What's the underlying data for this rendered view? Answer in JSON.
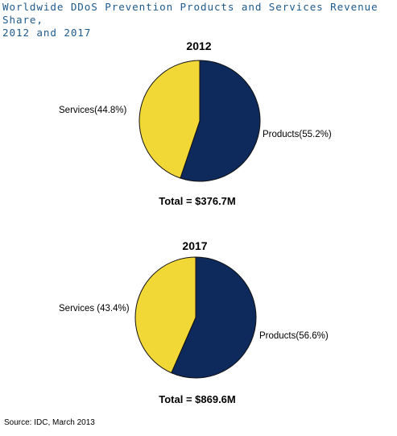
{
  "title_lines": [
    "Worldwide DDoS Prevention Products and Services Revenue Share,",
    "2012 and 2017"
  ],
  "chart_data": [
    {
      "type": "pie",
      "title": "2012",
      "slices": [
        {
          "label": "Products",
          "value": 55.2,
          "display": "Products(55.2%)",
          "color": "#0e2a5c"
        },
        {
          "label": "Services",
          "value": 44.8,
          "display": "Services(44.8%)",
          "color": "#f2d837"
        }
      ],
      "total_text": "Total = $376.7M"
    },
    {
      "type": "pie",
      "title": "2017",
      "slices": [
        {
          "label": "Products",
          "value": 56.6,
          "display": "Products(56.6%)",
          "color": "#0e2a5c"
        },
        {
          "label": "Services",
          "value": 43.4,
          "display": "Services (43.4%)",
          "color": "#f2d837"
        }
      ],
      "total_text": "Total = $869.6M"
    }
  ],
  "source": "Source: IDC, March 2013"
}
